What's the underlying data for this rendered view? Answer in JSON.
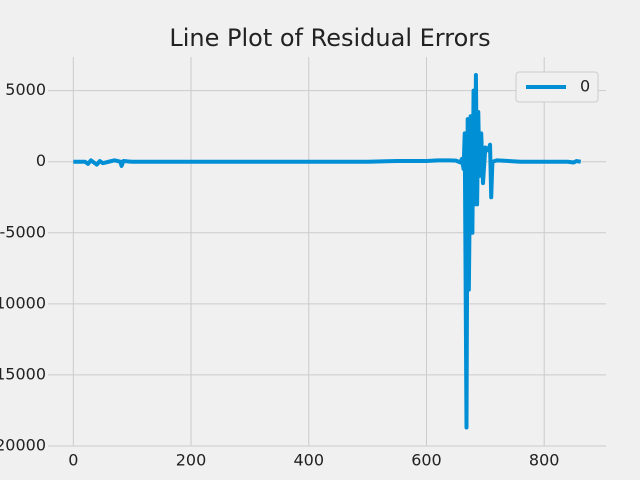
{
  "chart_data": {
    "type": "line",
    "title": "Line Plot of Residual Errors",
    "xlim": [
      -43,
      905
    ],
    "ylim": [
      -20000,
      7370
    ],
    "xticks": [
      0,
      200,
      400,
      600,
      800
    ],
    "yticks": [
      -20000,
      -15000,
      -10000,
      -5000,
      0,
      5000
    ],
    "grid": true,
    "legend": "upper right",
    "x": [
      0,
      20,
      25,
      30,
      40,
      45,
      50,
      60,
      70,
      80,
      82,
      85,
      100,
      200,
      300,
      400,
      500,
      550,
      600,
      620,
      640,
      650,
      658,
      660,
      663,
      665,
      668,
      670,
      672,
      675,
      678,
      680,
      682,
      684,
      686,
      688,
      690,
      693,
      696,
      700,
      705,
      708,
      710,
      712,
      720,
      760,
      800,
      840,
      850,
      855,
      862
    ],
    "series": [
      {
        "name": "0",
        "color": "#008fd5",
        "values": [
          0,
          0,
          -150,
          100,
          -200,
          50,
          -100,
          0,
          100,
          0,
          -300,
          50,
          0,
          0,
          0,
          0,
          0,
          50,
          50,
          100,
          100,
          80,
          -50,
          200,
          -500,
          2000,
          -18700,
          3000,
          -9000,
          3200,
          -5000,
          5000,
          -3000,
          6100,
          -3000,
          3500,
          -1000,
          2000,
          -1500,
          1000,
          800,
          1200,
          -2500,
          0,
          100,
          0,
          0,
          0,
          -50,
          50,
          0
        ]
      }
    ]
  }
}
